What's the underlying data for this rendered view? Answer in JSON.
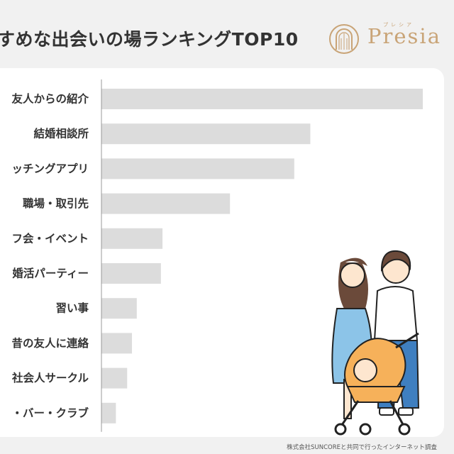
{
  "title": "すめな出会いの場ランキングTOP10",
  "brand": {
    "name": "Presia",
    "ruby": "プレシア"
  },
  "credit": "株式会社SUNCOREと共同で行ったインターネット調査",
  "colors": {
    "bar": "#dcdcdc",
    "axis": "#999999",
    "brand": "#c9a477",
    "card": "#ffffff"
  },
  "chart_data": {
    "type": "bar",
    "orientation": "horizontal",
    "categories": [
      "友人からの紹介",
      "結婚相談所",
      "ッチングアプリ",
      "職場・取引先",
      "フ会・イベント",
      "婚活パーティー",
      "習い事",
      "昔の友人に連絡",
      "社会人サークル",
      "・バー・クラブ"
    ],
    "values": [
      100,
      65,
      60,
      40,
      19,
      18.5,
      11,
      9.5,
      8,
      4.5
    ],
    "xlim": [
      0,
      100
    ],
    "title": "",
    "xlabel": "",
    "ylabel": "",
    "grid": false
  }
}
